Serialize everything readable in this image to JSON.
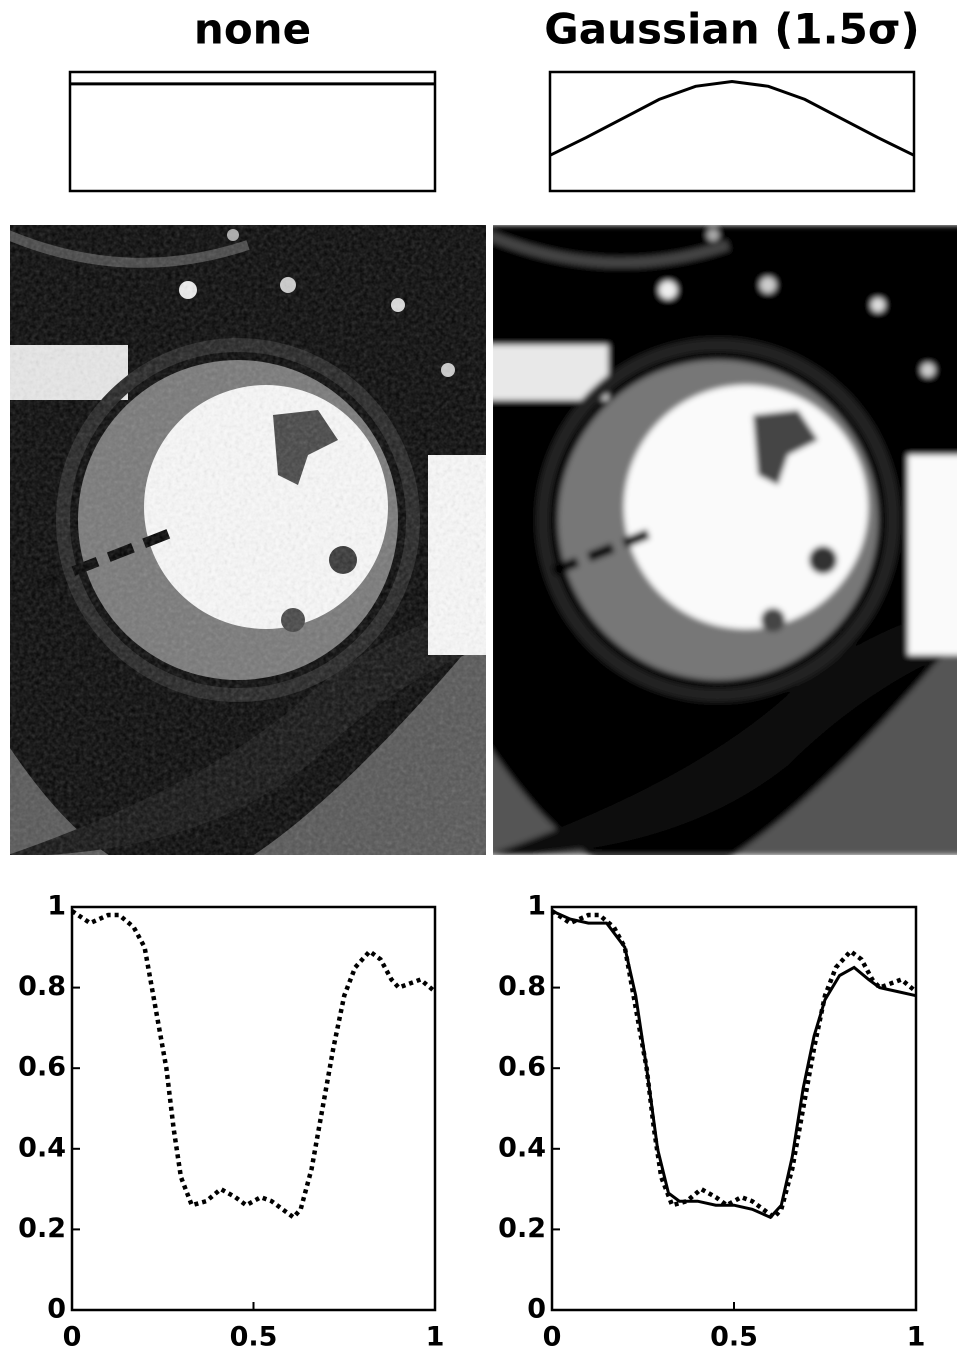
{
  "chart_data": [
    {
      "type": "line",
      "title": "none",
      "x": [
        0,
        1
      ],
      "values": [
        0.9,
        0.9
      ],
      "xlim": [
        0,
        1
      ],
      "ylim": [
        0,
        1
      ],
      "color": "#000000"
    },
    {
      "type": "line",
      "title": "Gaussian (1.5σ)",
      "x": [
        0,
        0.1,
        0.2,
        0.3,
        0.4,
        0.5,
        0.6,
        0.7,
        0.8,
        0.9,
        1
      ],
      "values": [
        0.3,
        0.45,
        0.61,
        0.77,
        0.88,
        0.92,
        0.88,
        0.77,
        0.61,
        0.45,
        0.3
      ],
      "xlim": [
        0,
        1
      ],
      "ylim": [
        0,
        1
      ],
      "color": "#000000"
    },
    {
      "type": "line",
      "xlim": [
        0,
        1
      ],
      "ylim": [
        0,
        1
      ],
      "xticks": [
        0,
        0.5,
        1
      ],
      "yticks": [
        0,
        0.2,
        0.4,
        0.6,
        0.8,
        1
      ],
      "series": [
        {
          "color": "#000000",
          "style": "dotted",
          "x": [
            0,
            0.05,
            0.1,
            0.13,
            0.17,
            0.2,
            0.23,
            0.26,
            0.28,
            0.3,
            0.33,
            0.37,
            0.41,
            0.45,
            0.48,
            0.52,
            0.55,
            0.58,
            0.61,
            0.63,
            0.66,
            0.69,
            0.72,
            0.75,
            0.78,
            0.82,
            0.85,
            0.88,
            0.9,
            0.93,
            0.96,
            1
          ],
          "values": [
            0.99,
            0.96,
            0.98,
            0.98,
            0.95,
            0.9,
            0.75,
            0.6,
            0.45,
            0.33,
            0.26,
            0.27,
            0.3,
            0.28,
            0.26,
            0.28,
            0.27,
            0.25,
            0.23,
            0.25,
            0.35,
            0.5,
            0.65,
            0.78,
            0.85,
            0.89,
            0.87,
            0.82,
            0.8,
            0.81,
            0.82,
            0.79
          ]
        }
      ]
    },
    {
      "type": "line",
      "xlim": [
        0,
        1
      ],
      "ylim": [
        0,
        1
      ],
      "xticks": [
        0,
        0.5,
        1
      ],
      "yticks": [
        0,
        0.2,
        0.4,
        0.6,
        0.8,
        1
      ],
      "series": [
        {
          "color": "#000000",
          "style": "dotted",
          "x": [
            0,
            0.05,
            0.1,
            0.13,
            0.17,
            0.2,
            0.23,
            0.26,
            0.28,
            0.3,
            0.33,
            0.37,
            0.41,
            0.45,
            0.48,
            0.52,
            0.55,
            0.58,
            0.61,
            0.63,
            0.66,
            0.69,
            0.72,
            0.75,
            0.78,
            0.82,
            0.85,
            0.88,
            0.9,
            0.93,
            0.96,
            1
          ],
          "values": [
            0.99,
            0.96,
            0.98,
            0.98,
            0.95,
            0.9,
            0.75,
            0.6,
            0.45,
            0.33,
            0.26,
            0.27,
            0.3,
            0.28,
            0.26,
            0.28,
            0.27,
            0.25,
            0.23,
            0.25,
            0.35,
            0.5,
            0.65,
            0.78,
            0.85,
            0.89,
            0.87,
            0.82,
            0.8,
            0.81,
            0.82,
            0.79
          ]
        },
        {
          "color": "#000000",
          "style": "solid",
          "x": [
            0,
            0.05,
            0.1,
            0.15,
            0.2,
            0.23,
            0.26,
            0.29,
            0.32,
            0.35,
            0.4,
            0.45,
            0.5,
            0.55,
            0.6,
            0.63,
            0.66,
            0.69,
            0.72,
            0.75,
            0.79,
            0.83,
            0.87,
            0.9,
            0.95,
            1
          ],
          "values": [
            0.99,
            0.97,
            0.96,
            0.96,
            0.9,
            0.78,
            0.6,
            0.4,
            0.29,
            0.27,
            0.27,
            0.26,
            0.26,
            0.25,
            0.23,
            0.26,
            0.38,
            0.55,
            0.68,
            0.77,
            0.83,
            0.85,
            0.82,
            0.8,
            0.79,
            0.78
          ]
        }
      ]
    }
  ]
}
